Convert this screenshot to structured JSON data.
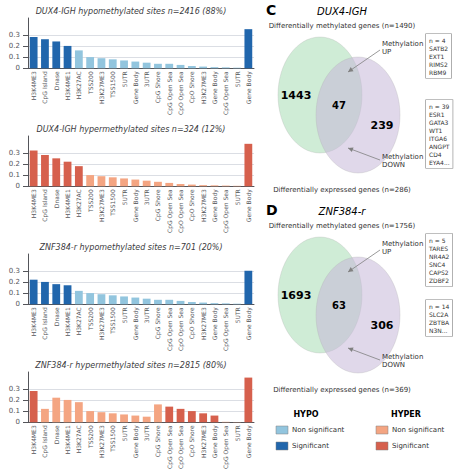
{
  "chart_data": [
    {
      "type": "bar",
      "title": "DUX4-IGH hypomethylated sites n=2416 (88%)",
      "categories": [
        "H3K4ME3",
        "CpG Island",
        "Dnase",
        "H3K4ME1",
        "H3K27AC",
        "TSS200",
        "H3K27ME3",
        "TSS1500",
        "5UTR",
        "Gene Body",
        "3UTR",
        "CpG Shore",
        "CpG Open Sea",
        "CpO Open Sea",
        "CpO Shore",
        "H3K27ME3",
        "Gene Body",
        "CpG Open Sea",
        "5UTR",
        "Gene Body"
      ],
      "values": [
        0.28,
        0.26,
        0.24,
        0.2,
        0.16,
        0.1,
        0.09,
        0.08,
        0.07,
        0.06,
        0.05,
        0.04,
        0.04,
        0.03,
        0.02,
        0.015,
        0.01,
        0.008,
        0.005,
        0.35
      ],
      "colors": [
        "#2166ac",
        "#2166ac",
        "#2166ac",
        "#2166ac",
        "#92c5de",
        "#92c5de",
        "#92c5de",
        "#92c5de",
        "#92c5de",
        "#92c5de",
        "#92c5de",
        "#92c5de",
        "#92c5de",
        "#92c5de",
        "#92c5de",
        "#92c5de",
        "#92c5de",
        "#92c5de",
        "#92c5de",
        "#2166ac"
      ],
      "ylim": [
        0,
        0.45
      ],
      "yticks": [
        0,
        0.1,
        0.2,
        0.3
      ],
      "grid": true
    },
    {
      "type": "bar",
      "title": "DUX4-IGH hypermethylated sites n=324 (12%)",
      "categories": [
        "H3K4ME3",
        "CpG Island",
        "Dnase",
        "H3K4ME1",
        "H3K27AC",
        "TSS200",
        "H3K27ME3",
        "TSS1500",
        "5UTR",
        "Gene Body",
        "3UTR",
        "CpG Shore",
        "CpG Open Sea",
        "CpO Open Sea",
        "CpO Shore",
        "H3K27ME3",
        "Gene Body",
        "CpG Open Sea",
        "5UTR",
        "Gene Body"
      ],
      "values": [
        0.32,
        0.28,
        0.25,
        0.22,
        0.18,
        0.1,
        0.09,
        0.08,
        0.07,
        0.06,
        0.05,
        0.04,
        0.03,
        0.02,
        0.015,
        0.01,
        0.008,
        0.006,
        0.004,
        0.38
      ],
      "colors": [
        "#d6604d",
        "#d6604d",
        "#d6604d",
        "#d6604d",
        "#d6604d",
        "#f4a582",
        "#f4a582",
        "#f4a582",
        "#f4a582",
        "#f4a582",
        "#f4a582",
        "#f4a582",
        "#f4a582",
        "#f4a582",
        "#f4a582",
        "#f4a582",
        "#f4a582",
        "#f4a582",
        "#f4a582",
        "#d6604d"
      ],
      "ylim": [
        0,
        0.45
      ],
      "yticks": [
        0,
        0.1,
        0.2,
        0.3
      ],
      "grid": true
    },
    {
      "type": "bar",
      "title": "ZNF384-r hypomethylated sites n=701 (20%)",
      "categories": [
        "H3K4ME3",
        "CpG Island",
        "Dnase",
        "H3K4ME1",
        "H3K27AC",
        "TSS200",
        "H3K27ME3",
        "TSS1500",
        "5UTR",
        "Gene Body",
        "3UTR",
        "CpG Shore",
        "CpG Open Sea",
        "CpO Open Sea",
        "CpO Shore",
        "H3K27ME3",
        "Gene Body",
        "CpG Open Sea",
        "5UTR",
        "Gene Body"
      ],
      "values": [
        0.22,
        0.2,
        0.18,
        0.17,
        0.12,
        0.1,
        0.09,
        0.08,
        0.07,
        0.06,
        0.05,
        0.04,
        0.04,
        0.03,
        0.02,
        0.015,
        0.01,
        0.008,
        0.005,
        0.3
      ],
      "colors": [
        "#2166ac",
        "#2166ac",
        "#2166ac",
        "#2166ac",
        "#92c5de",
        "#92c5de",
        "#92c5de",
        "#92c5de",
        "#92c5de",
        "#92c5de",
        "#92c5de",
        "#92c5de",
        "#92c5de",
        "#92c5de",
        "#92c5de",
        "#92c5de",
        "#92c5de",
        "#92c5de",
        "#92c5de",
        "#2166ac"
      ],
      "ylim": [
        0,
        0.45
      ],
      "yticks": [
        0,
        0.1,
        0.2,
        0.3
      ],
      "grid": true
    },
    {
      "type": "bar",
      "title": "ZNF384-r hypermethylated sites n=2815 (80%)",
      "categories": [
        "H3K4ME3",
        "CpG Island",
        "Dnase",
        "H3K4ME1",
        "H3K27AC",
        "TSS200",
        "H3K27ME3",
        "TSS1500",
        "5UTR",
        "Gene Body",
        "3UTR",
        "CpG Shore",
        "CpG Open Sea",
        "CpO Open Sea",
        "CpO Shore",
        "H3K27ME3",
        "Gene Body",
        "CpG Open Sea",
        "5UTR",
        "Gene Body"
      ],
      "values": [
        0.28,
        0.12,
        0.22,
        0.2,
        0.18,
        0.1,
        0.09,
        0.08,
        0.07,
        0.06,
        0.05,
        0.16,
        0.14,
        0.12,
        0.1,
        0.08,
        0.06,
        0.004,
        0.002,
        0.4
      ],
      "colors": [
        "#d6604d",
        "#f4a582",
        "#f4a582",
        "#f4a582",
        "#f4a582",
        "#f4a582",
        "#f4a582",
        "#f4a582",
        "#f4a582",
        "#f4a582",
        "#f4a582",
        "#f4a582",
        "#d6604d",
        "#d6604d",
        "#d6604d",
        "#d6604d",
        "#d6604d",
        "#f4a582",
        "#f4a582",
        "#d6604d"
      ],
      "ylim": [
        0,
        0.45
      ],
      "yticks": [
        0,
        0.1,
        0.2,
        0.3
      ],
      "grid": true
    },
    {
      "type": "venn",
      "panel": "C",
      "title": "DUX4-IGH",
      "sets": [
        {
          "name": "Differentially methylated genes (n=1490)",
          "color": "#a8ddb5"
        },
        {
          "name": "Differentially expressed genes (n=286)",
          "color": "#c7b8d8"
        }
      ],
      "values": [
        1443,
        47,
        239
      ],
      "annotations": [
        {
          "text": "Methylation\nUP",
          "genes": "n = 4\nSATB2\nEXT1\nRIMS2\nRBM9"
        },
        {
          "text": "Methylation\nDOWN",
          "genes": "n = 39\nESR1\nGATA3\nWT1\nITGA6\nANGPT\nCD4\nEYA4..."
        }
      ]
    },
    {
      "type": "venn",
      "panel": "D",
      "title": "ZNF384-r",
      "sets": [
        {
          "name": "Differentially methylated genes (n=1756)",
          "color": "#a8ddb5"
        },
        {
          "name": "Differentially expressed genes (n=369)",
          "color": "#c7b8d8"
        }
      ],
      "values": [
        1693,
        63,
        306
      ],
      "annotations": [
        {
          "text": "Methylation\nUP",
          "genes": "n = 5\nTARES\nNR4A2\nSNC4\nCAPS2\nZDBF2"
        },
        {
          "text": "Methylation\nDOWN",
          "genes": "n = 14\nSLC2A\nZBTBA\nN3N..."
        }
      ]
    }
  ],
  "legend_groups": [
    {
      "title": "HYPO",
      "entries": [
        {
          "name": "Non significant",
          "color": "#92c5de"
        },
        {
          "name": "Significant",
          "color": "#2166ac"
        }
      ]
    },
    {
      "title": "HYPER",
      "entries": [
        {
          "name": "Non significant",
          "color": "#f4a582"
        },
        {
          "name": "Significant",
          "color": "#d6604d"
        }
      ]
    }
  ]
}
